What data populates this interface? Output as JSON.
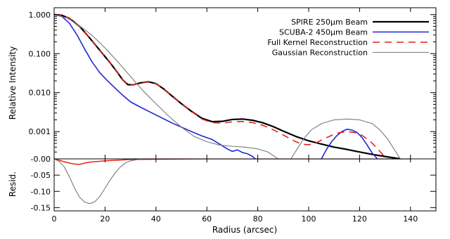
{
  "chart_data": [
    {
      "type": "line",
      "panel": "top",
      "yscale": "log",
      "xlim": [
        0,
        150
      ],
      "ylim": [
        0.0002,
        1.5
      ],
      "ylabel": "Relative Intensity",
      "xlabel": "",
      "x_ticks": [
        0,
        20,
        40,
        60,
        80,
        100,
        120,
        140
      ],
      "y_ticks": [
        {
          "value": 1.0,
          "label": "1.000"
        },
        {
          "value": 0.1,
          "label": "0.100"
        },
        {
          "value": 0.01,
          "label": "0.010"
        },
        {
          "value": 0.001,
          "label": "0.001"
        }
      ],
      "legend_position": "top-right",
      "series": [
        {
          "name": "SPIRE 250µm Beam",
          "color": "#000000",
          "dash": "solid",
          "points": [
            [
              0,
              1.0
            ],
            [
              3,
              0.96
            ],
            [
              6,
              0.8
            ],
            [
              10,
              0.5
            ],
            [
              14,
              0.25
            ],
            [
              18,
              0.12
            ],
            [
              22,
              0.058
            ],
            [
              25,
              0.032
            ],
            [
              27,
              0.021
            ],
            [
              29,
              0.016
            ],
            [
              31,
              0.0158
            ],
            [
              34,
              0.0178
            ],
            [
              37,
              0.019
            ],
            [
              40,
              0.017
            ],
            [
              43,
              0.0125
            ],
            [
              46,
              0.0085
            ],
            [
              50,
              0.0052
            ],
            [
              54,
              0.0033
            ],
            [
              58,
              0.0022
            ],
            [
              62,
              0.0018
            ],
            [
              66,
              0.00183
            ],
            [
              70,
              0.00205
            ],
            [
              74,
              0.0021
            ],
            [
              78,
              0.00195
            ],
            [
              82,
              0.00168
            ],
            [
              86,
              0.00135
            ],
            [
              90,
              0.00103
            ],
            [
              95,
              0.00075
            ],
            [
              100,
              0.00058
            ],
            [
              105,
              0.00048
            ],
            [
              110,
              0.0004
            ],
            [
              115,
              0.00035
            ],
            [
              120,
              0.0003
            ],
            [
              125,
              0.00026
            ],
            [
              130,
              0.00023
            ],
            [
              136,
              0.0002
            ]
          ]
        },
        {
          "name": "SCUBA-2 450µm Beam",
          "color": "#1f28d6",
          "dash": "solid",
          "points": [
            [
              0,
              1.0
            ],
            [
              3,
              0.9
            ],
            [
              6,
              0.6
            ],
            [
              9,
              0.3
            ],
            [
              12,
              0.13
            ],
            [
              15,
              0.06
            ],
            [
              18,
              0.032
            ],
            [
              21,
              0.02
            ],
            [
              24,
              0.013
            ],
            [
              27,
              0.0085
            ],
            [
              30,
              0.0058
            ],
            [
              34,
              0.0042
            ],
            [
              38,
              0.0031
            ],
            [
              42,
              0.0023
            ],
            [
              46,
              0.0017
            ],
            [
              50,
              0.0013
            ],
            [
              54,
              0.001
            ],
            [
              58,
              0.00078
            ],
            [
              62,
              0.00063
            ],
            [
              65,
              0.00048
            ],
            [
              68,
              0.00036
            ],
            [
              70,
              0.00031
            ],
            [
              72,
              0.00034
            ],
            [
              74,
              0.00029
            ],
            [
              76,
              0.00027
            ],
            [
              78,
              0.00023
            ],
            [
              79,
              0.0002
            ]
          ],
          "points_2": [
            [
              105,
              0.0002
            ],
            [
              107,
              0.00035
            ],
            [
              109,
              0.00055
            ],
            [
              111,
              0.00078
            ],
            [
              113,
              0.001
            ],
            [
              115,
              0.00115
            ],
            [
              117,
              0.0011
            ],
            [
              119,
              0.00095
            ],
            [
              121,
              0.0007
            ],
            [
              123,
              0.00045
            ],
            [
              125,
              0.00028
            ],
            [
              127,
              0.0002
            ]
          ]
        },
        {
          "name": "Full Kernel Reconstruction",
          "color": "#e8221a",
          "dash": "10,7",
          "points": [
            [
              0,
              1.0
            ],
            [
              3,
              0.96
            ],
            [
              6,
              0.8
            ],
            [
              10,
              0.5
            ],
            [
              14,
              0.25
            ],
            [
              18,
              0.12
            ],
            [
              22,
              0.058
            ],
            [
              25,
              0.032
            ],
            [
              27,
              0.021
            ],
            [
              29,
              0.016
            ],
            [
              31,
              0.0158
            ],
            [
              34,
              0.0178
            ],
            [
              37,
              0.019
            ],
            [
              40,
              0.017
            ],
            [
              43,
              0.0125
            ],
            [
              46,
              0.0085
            ],
            [
              50,
              0.0052
            ],
            [
              54,
              0.0033
            ],
            [
              58,
              0.0021
            ],
            [
              62,
              0.0017
            ],
            [
              66,
              0.00165
            ],
            [
              70,
              0.00178
            ],
            [
              74,
              0.00182
            ],
            [
              78,
              0.0017
            ],
            [
              82,
              0.00145
            ],
            [
              86,
              0.00112
            ],
            [
              90,
              0.00082
            ],
            [
              94,
              0.00059
            ],
            [
              97,
              0.00048
            ],
            [
              100,
              0.00046
            ],
            [
              103,
              0.00052
            ],
            [
              106,
              0.00065
            ],
            [
              109,
              0.0008
            ],
            [
              112,
              0.00094
            ],
            [
              115,
              0.001
            ],
            [
              118,
              0.00095
            ],
            [
              121,
              0.0008
            ],
            [
              124,
              0.00058
            ],
            [
              127,
              0.00037
            ],
            [
              129,
              0.00026
            ],
            [
              131,
              0.0002
            ]
          ]
        },
        {
          "name": "Gaussian Reconstruction",
          "color": "#7a7a7a",
          "dash": "solid",
          "points": [
            [
              0,
              1.0
            ],
            [
              5,
              0.82
            ],
            [
              10,
              0.52
            ],
            [
              15,
              0.29
            ],
            [
              20,
              0.14
            ],
            [
              25,
              0.062
            ],
            [
              30,
              0.026
            ],
            [
              35,
              0.011
            ],
            [
              40,
              0.0052
            ],
            [
              45,
              0.0025
            ],
            [
              50,
              0.0013
            ],
            [
              55,
              0.00075
            ],
            [
              60,
              0.00055
            ],
            [
              65,
              0.00045
            ],
            [
              70,
              0.00042
            ],
            [
              75,
              0.0004
            ],
            [
              80,
              0.00036
            ],
            [
              84,
              0.0003
            ],
            [
              87,
              0.00022
            ],
            [
              88,
              0.0002
            ]
          ],
          "points_2": [
            [
              93,
              0.0002
            ],
            [
              95,
              0.00032
            ],
            [
              98,
              0.00065
            ],
            [
              101,
              0.0011
            ],
            [
              105,
              0.0016
            ],
            [
              110,
              0.002
            ],
            [
              115,
              0.0021
            ],
            [
              120,
              0.002
            ],
            [
              125,
              0.0016
            ],
            [
              128,
              0.0011
            ],
            [
              131,
              0.00065
            ],
            [
              134,
              0.00032
            ],
            [
              136,
              0.0002
            ]
          ]
        }
      ],
      "legend": [
        {
          "label": "SPIRE 250µm Beam",
          "color": "#000000",
          "dash": "solid"
        },
        {
          "label": "SCUBA-2 450µm Beam",
          "color": "#1f28d6",
          "dash": "solid"
        },
        {
          "label": "Full Kernel Reconstruction",
          "color": "#e8221a",
          "dash": "10,7"
        },
        {
          "label": "Gaussian Reconstruction",
          "color": "#7a7a7a",
          "dash": "solid"
        }
      ]
    },
    {
      "type": "line",
      "panel": "bottom",
      "xlim": [
        0,
        150
      ],
      "ylim": [
        -0.16,
        0.0
      ],
      "ylabel": "Resid.",
      "xlabel": "Radius (arcsec)",
      "x_ticks": [
        0,
        20,
        40,
        60,
        80,
        100,
        120,
        140
      ],
      "y_ticks": [
        {
          "value": 0.0,
          "label": "-0.00"
        },
        {
          "value": -0.05,
          "label": "-0.05"
        },
        {
          "value": -0.1,
          "label": "-0.10"
        },
        {
          "value": -0.15,
          "label": "-0.15"
        }
      ],
      "series": [
        {
          "name": "Full Kernel Reconstruction",
          "color": "#e8221a",
          "dash": "solid",
          "points": [
            [
              0,
              0.0
            ],
            [
              2,
              -0.004
            ],
            [
              4,
              -0.009
            ],
            [
              6,
              -0.013
            ],
            [
              8,
              -0.016
            ],
            [
              10,
              -0.017
            ],
            [
              12,
              -0.013
            ],
            [
              14,
              -0.01
            ],
            [
              17,
              -0.008
            ],
            [
              20,
              -0.006
            ],
            [
              25,
              -0.004
            ],
            [
              30,
              -0.002
            ],
            [
              40,
              -0.001
            ],
            [
              60,
              0.0
            ],
            [
              80,
              0.0
            ],
            [
              100,
              0.0
            ],
            [
              140,
              0.0
            ]
          ]
        },
        {
          "name": "Gaussian Reconstruction",
          "color": "#7a7a7a",
          "dash": "solid",
          "points": [
            [
              0,
              0.0
            ],
            [
              2,
              -0.008
            ],
            [
              4,
              -0.025
            ],
            [
              6,
              -0.055
            ],
            [
              8,
              -0.09
            ],
            [
              10,
              -0.118
            ],
            [
              12,
              -0.133
            ],
            [
              14,
              -0.138
            ],
            [
              16,
              -0.132
            ],
            [
              18,
              -0.115
            ],
            [
              20,
              -0.09
            ],
            [
              22,
              -0.065
            ],
            [
              24,
              -0.043
            ],
            [
              26,
              -0.025
            ],
            [
              28,
              -0.013
            ],
            [
              30,
              -0.006
            ],
            [
              33,
              -0.002
            ],
            [
              36,
              0.0
            ],
            [
              60,
              0.0
            ],
            [
              100,
              0.0
            ],
            [
              140,
              0.0
            ]
          ]
        }
      ]
    }
  ]
}
